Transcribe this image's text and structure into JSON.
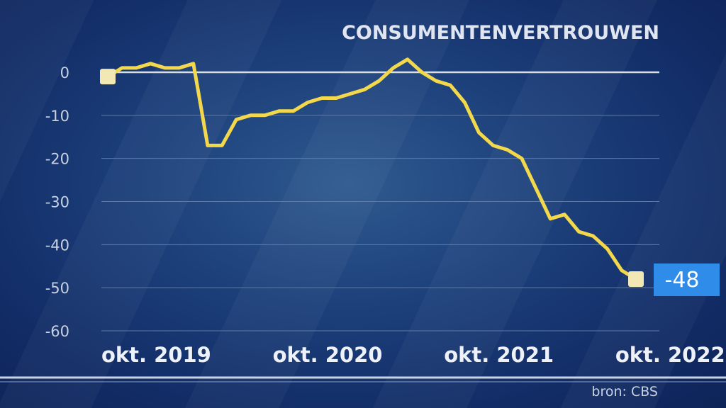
{
  "chart_data": {
    "type": "line",
    "title": "CONSUMENTENVERTROUWEN",
    "source": "bron: CBS",
    "ylim": [
      -60,
      0
    ],
    "yticks": [
      0,
      -10,
      -20,
      -30,
      -40,
      -50,
      -60
    ],
    "ytick_labels": [
      "0",
      "-10",
      "-20",
      "-30",
      "-40",
      "-50",
      "-60"
    ],
    "xticks": [
      {
        "label": "okt. 2019",
        "index": 3
      },
      {
        "label": "okt. 2020",
        "index": 15
      },
      {
        "label": "okt. 2021",
        "index": 27
      },
      {
        "label": "okt. 2022",
        "index": 39
      }
    ],
    "values": [
      -1,
      1,
      1,
      2,
      1,
      1,
      2,
      -17,
      -17,
      -11,
      -10,
      -10,
      -9,
      -9,
      -7,
      -6,
      -6,
      -5,
      -4,
      -2,
      1,
      3,
      0,
      -2,
      -3,
      -7,
      -14,
      -17,
      -18,
      -20,
      -27,
      -34,
      -33,
      -37,
      -38,
      -41,
      -46,
      -48
    ],
    "last_label": "-48",
    "colors": {
      "line": "#f2d84a",
      "marker": "#f2e8b4",
      "badge": "#2f8ce8",
      "zero": "#d8dde6",
      "grid": "#5e7aa6"
    }
  }
}
